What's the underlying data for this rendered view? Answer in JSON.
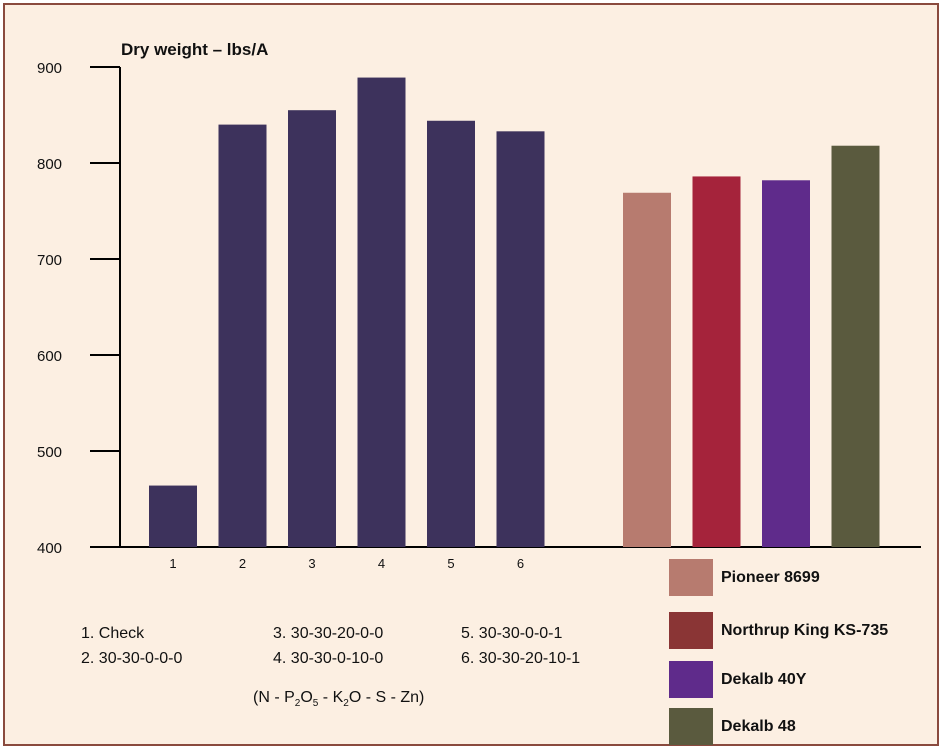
{
  "chart_data": {
    "type": "bar",
    "ylabel": "Dry weight – lbs/A",
    "ylim": [
      400,
      900
    ],
    "yticks": [
      400,
      500,
      600,
      700,
      800,
      900
    ],
    "grid": false,
    "groups": [
      {
        "bars": [
          {
            "label": "1",
            "value": 464,
            "color": "#3d325c"
          },
          {
            "label": "2",
            "value": 840,
            "color": "#3d325c"
          },
          {
            "label": "3",
            "value": 855,
            "color": "#3d325c"
          },
          {
            "label": "4",
            "value": 889,
            "color": "#3d325c"
          },
          {
            "label": "5",
            "value": 844,
            "color": "#3d325c"
          },
          {
            "label": "6",
            "value": 833,
            "color": "#3d325c"
          }
        ]
      },
      {
        "bars": [
          {
            "label": "",
            "value": 769,
            "color": "#b77b6f"
          },
          {
            "label": "",
            "value": 786,
            "color": "#a5233b"
          },
          {
            "label": "",
            "value": 782,
            "color": "#5f2b8b"
          },
          {
            "label": "",
            "value": 818,
            "color": "#5a5a3e"
          }
        ]
      }
    ]
  },
  "legend": [
    {
      "label": "Pioneer 8699",
      "color": "#b77b6f"
    },
    {
      "label": "Northrup King KS-735",
      "color": "#8a3535"
    },
    {
      "label": "Dekalb 40Y",
      "color": "#5f2b8b"
    },
    {
      "label": "Dekalb 48",
      "color": "#5a5a3e"
    }
  ],
  "notes": [
    "1. Check",
    "2. 30-30-0-0-0",
    "3. 30-30-20-0-0",
    "4. 30-30-0-10-0",
    "5. 30-30-0-0-1",
    "6. 30-30-20-10-1"
  ],
  "formula": {
    "p1": "(N - P",
    "s1": "2",
    "p2": "O",
    "s2": "5",
    "p3": " - K",
    "s3": "2",
    "p4": "O - S - Zn)"
  }
}
